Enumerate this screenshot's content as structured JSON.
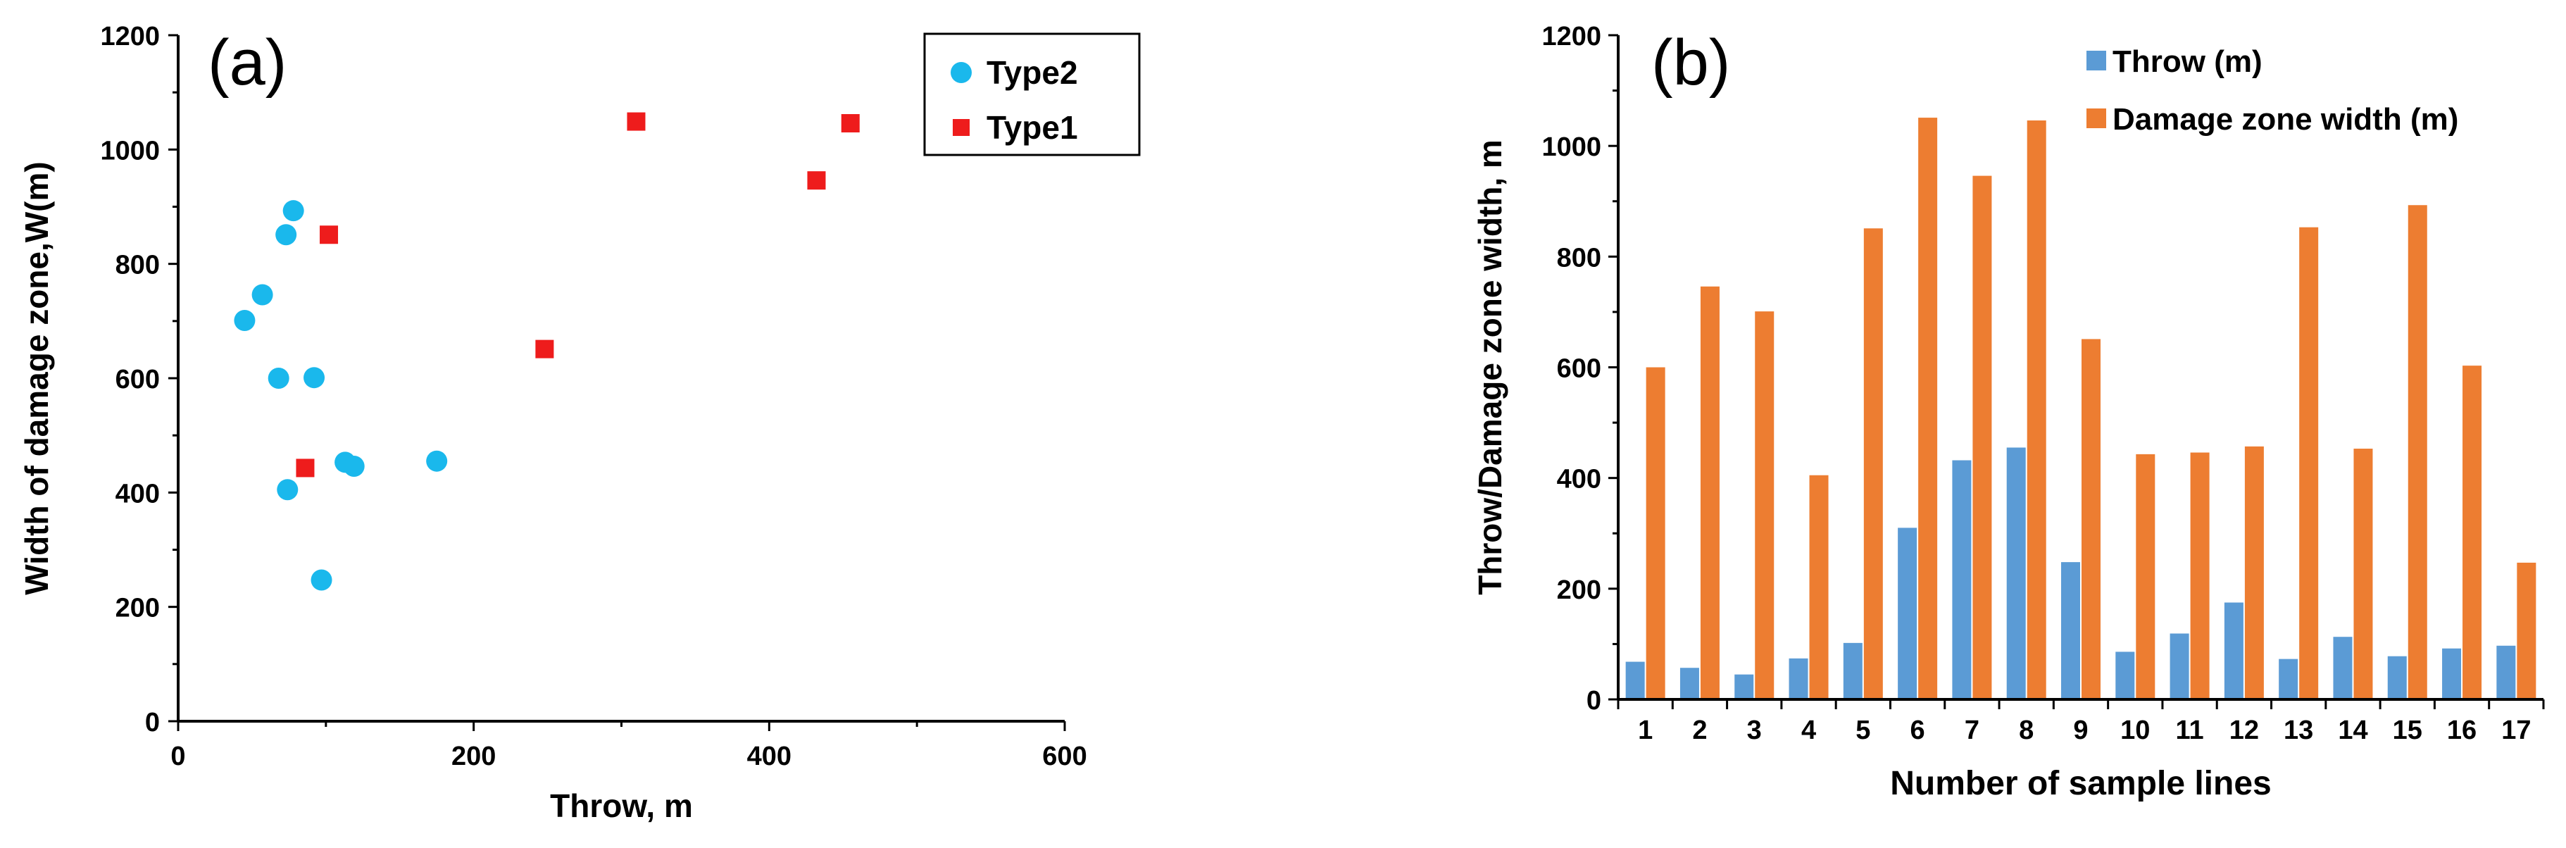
{
  "chart_data": [
    {
      "type": "scatter",
      "panel_label": "(a)",
      "xlabel": "Throw, m",
      "ylabel": "Width of damage zone,W(m)",
      "xlim": [
        0,
        600
      ],
      "ylim": [
        0,
        1200
      ],
      "x_ticks": [
        "0",
        "200",
        "400",
        "600"
      ],
      "y_ticks": [
        "0",
        "200",
        "400",
        "600",
        "800",
        "1000",
        "1200"
      ],
      "grid": false,
      "legend_position": "top-right",
      "series": [
        {
          "name": "Type2",
          "marker": "circle",
          "color": "#1ab8ec",
          "points": [
            {
              "x": 78,
              "y": 893
            },
            {
              "x": 73,
              "y": 851
            },
            {
              "x": 57,
              "y": 746
            },
            {
              "x": 45,
              "y": 701
            },
            {
              "x": 68,
              "y": 600
            },
            {
              "x": 92,
              "y": 601
            },
            {
              "x": 113,
              "y": 453
            },
            {
              "x": 119,
              "y": 446
            },
            {
              "x": 175,
              "y": 455
            },
            {
              "x": 74,
              "y": 405
            },
            {
              "x": 97,
              "y": 247
            }
          ]
        },
        {
          "name": "Type1",
          "marker": "square",
          "color": "#ee1c1c",
          "points": [
            {
              "x": 310,
              "y": 1049
            },
            {
              "x": 455,
              "y": 1046
            },
            {
              "x": 432,
              "y": 946
            },
            {
              "x": 102,
              "y": 851
            },
            {
              "x": 248,
              "y": 651
            },
            {
              "x": 86,
              "y": 443
            }
          ]
        }
      ]
    },
    {
      "type": "bar",
      "panel_label": "(b)",
      "xlabel": "Number of sample lines",
      "ylabel": "Throw/Damage zone width, m",
      "ylim": [
        0,
        1200
      ],
      "y_ticks": [
        "0",
        "200",
        "400",
        "600",
        "800",
        "1000",
        "1200"
      ],
      "grid": false,
      "legend_position": "top-center",
      "categories": [
        "1",
        "2",
        "3",
        "4",
        "5",
        "6",
        "7",
        "8",
        "9",
        "10",
        "11",
        "12",
        "13",
        "14",
        "15",
        "16",
        "17"
      ],
      "series": [
        {
          "name": "Throw (m)",
          "color": "#5b9bd5",
          "values": [
            68,
            57,
            45,
            74,
            102,
            310,
            432,
            455,
            248,
            86,
            119,
            175,
            73,
            113,
            78,
            92,
            97
          ]
        },
        {
          "name": "Damage zone width (m)",
          "color": "#ed7d31",
          "values": [
            600,
            746,
            701,
            405,
            851,
            1051,
            946,
            1046,
            651,
            443,
            446,
            457,
            853,
            453,
            893,
            603,
            247
          ]
        }
      ]
    }
  ]
}
